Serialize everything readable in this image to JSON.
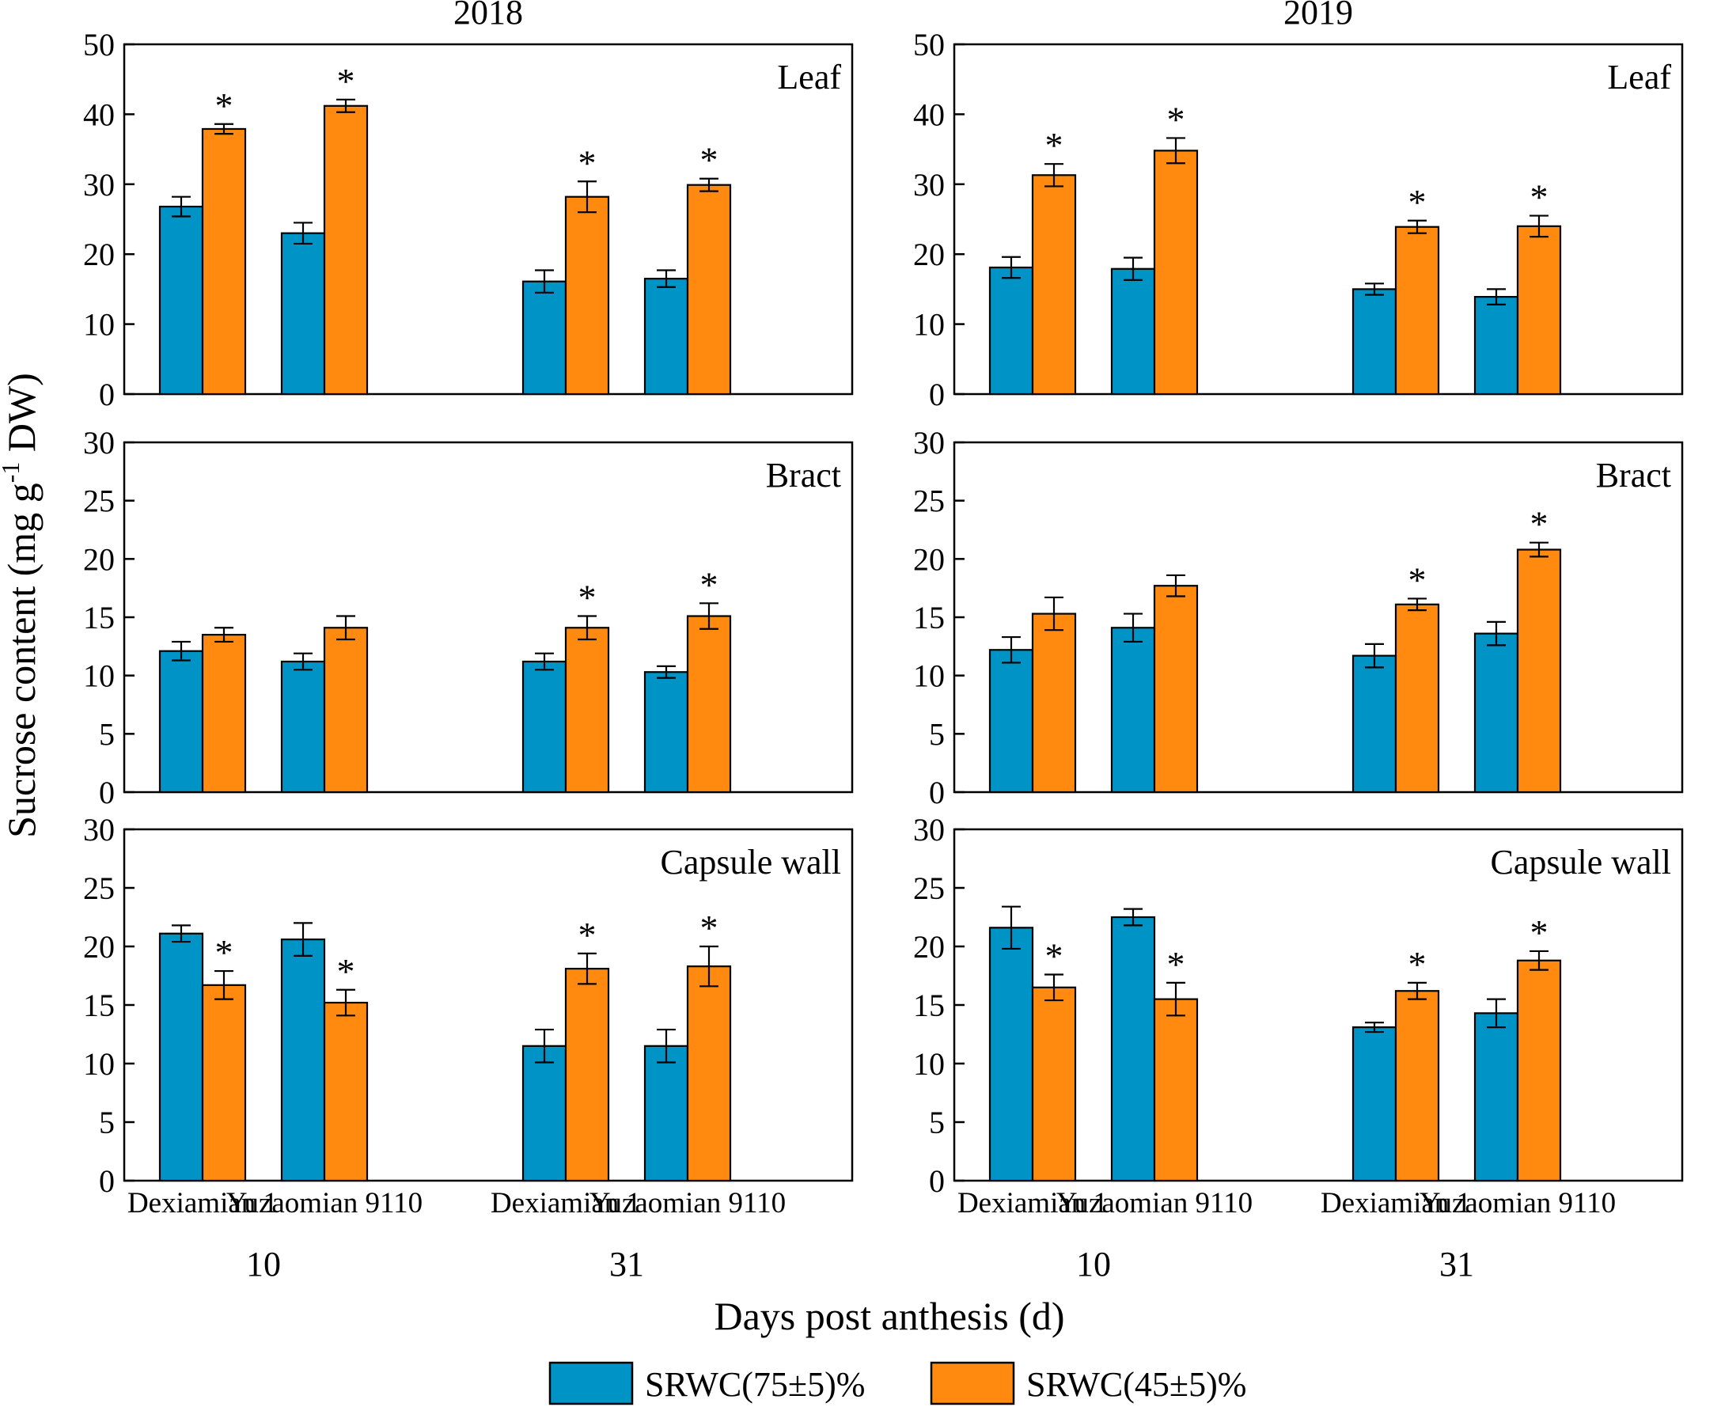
{
  "chart_data": {
    "type": "bar",
    "ylabel_main": "Sucrose content (mg g",
    "ylabel_sup": "-1",
    "ylabel_tail": " DW)",
    "xlabel": "Days post anthesis (d)",
    "legend": [
      {
        "name": "SRWC(75±5)%",
        "color": "#0093c6"
      },
      {
        "name": "SRWC(45±5)%",
        "color": "#ff8a0f"
      }
    ],
    "columns": [
      {
        "year": "2018",
        "categories": [
          "Dexiamian 1",
          "Yuzaomian 9110",
          "Dexiamian 1",
          "Yuzaomian 9110"
        ],
        "days": [
          "10",
          "31"
        ]
      },
      {
        "year": "2019",
        "categories": [
          "Dexiamian 1",
          "Yuzaomian 9110",
          "Dexiamian 1",
          "Yuzaomian 9110"
        ],
        "days": [
          "10",
          "31"
        ]
      }
    ],
    "rows": [
      {
        "organ": "Leaf",
        "ylim": [
          0,
          50
        ],
        "ticks": [
          "0",
          "10",
          "20",
          "30",
          "40",
          "50"
        ]
      },
      {
        "organ": "Bract",
        "ylim": [
          0,
          30
        ],
        "ticks": [
          "0",
          "5",
          "10",
          "15",
          "20",
          "25",
          "30"
        ]
      },
      {
        "organ": "Capsule wall",
        "ylim": [
          0,
          30
        ],
        "ticks": [
          "0",
          "5",
          "10",
          "15",
          "20",
          "25",
          "30"
        ]
      }
    ],
    "panels": [
      {
        "year": "2018",
        "organ": "Leaf",
        "series": [
          {
            "name": "SRWC(75±5)%",
            "values": [
              26.8,
              23.0,
              16.1,
              16.5
            ],
            "errors": [
              1.4,
              1.5,
              1.6,
              1.2
            ]
          },
          {
            "name": "SRWC(45±5)%",
            "values": [
              37.9,
              41.2,
              28.2,
              29.9
            ],
            "errors": [
              0.7,
              0.9,
              2.2,
              0.9
            ]
          }
        ],
        "significant": [
          true,
          true,
          true,
          true
        ]
      },
      {
        "year": "2019",
        "organ": "Leaf",
        "series": [
          {
            "name": "SRWC(75±5)%",
            "values": [
              18.1,
              17.9,
              15.0,
              13.9
            ],
            "errors": [
              1.5,
              1.6,
              0.8,
              1.1
            ]
          },
          {
            "name": "SRWC(45±5)%",
            "values": [
              31.3,
              34.8,
              23.9,
              24.0
            ],
            "errors": [
              1.6,
              1.8,
              0.9,
              1.5
            ]
          }
        ],
        "significant": [
          true,
          true,
          true,
          true
        ]
      },
      {
        "year": "2018",
        "organ": "Bract",
        "series": [
          {
            "name": "SRWC(75±5)%",
            "values": [
              12.1,
              11.2,
              11.2,
              10.3
            ],
            "errors": [
              0.8,
              0.7,
              0.7,
              0.5
            ]
          },
          {
            "name": "SRWC(45±5)%",
            "values": [
              13.5,
              14.1,
              14.1,
              15.1
            ],
            "errors": [
              0.6,
              1.0,
              1.0,
              1.1
            ]
          }
        ],
        "significant": [
          false,
          false,
          true,
          true
        ]
      },
      {
        "year": "2019",
        "organ": "Bract",
        "series": [
          {
            "name": "SRWC(75±5)%",
            "values": [
              12.2,
              14.1,
              11.7,
              13.6
            ],
            "errors": [
              1.1,
              1.2,
              1.0,
              1.0
            ]
          },
          {
            "name": "SRWC(45±5)%",
            "values": [
              15.3,
              17.7,
              16.1,
              20.8
            ],
            "errors": [
              1.4,
              0.9,
              0.5,
              0.6
            ]
          }
        ],
        "significant": [
          false,
          false,
          true,
          true
        ]
      },
      {
        "year": "2018",
        "organ": "Capsule wall",
        "series": [
          {
            "name": "SRWC(75±5)%",
            "values": [
              21.1,
              20.6,
              11.5,
              11.5
            ],
            "errors": [
              0.7,
              1.4,
              1.4,
              1.4
            ]
          },
          {
            "name": "SRWC(45±5)%",
            "values": [
              16.7,
              15.2,
              18.1,
              18.3
            ],
            "errors": [
              1.2,
              1.1,
              1.3,
              1.7
            ]
          }
        ],
        "significant": [
          true,
          true,
          true,
          true
        ]
      },
      {
        "year": "2019",
        "organ": "Capsule wall",
        "series": [
          {
            "name": "SRWC(75±5)%",
            "values": [
              21.6,
              22.5,
              13.1,
              14.3
            ],
            "errors": [
              1.8,
              0.7,
              0.4,
              1.2
            ]
          },
          {
            "name": "SRWC(45±5)%",
            "values": [
              16.5,
              15.5,
              16.2,
              18.8
            ],
            "errors": [
              1.1,
              1.4,
              0.7,
              0.8
            ]
          }
        ],
        "significant": [
          true,
          true,
          true,
          true
        ]
      }
    ],
    "significance_marker": "*"
  }
}
